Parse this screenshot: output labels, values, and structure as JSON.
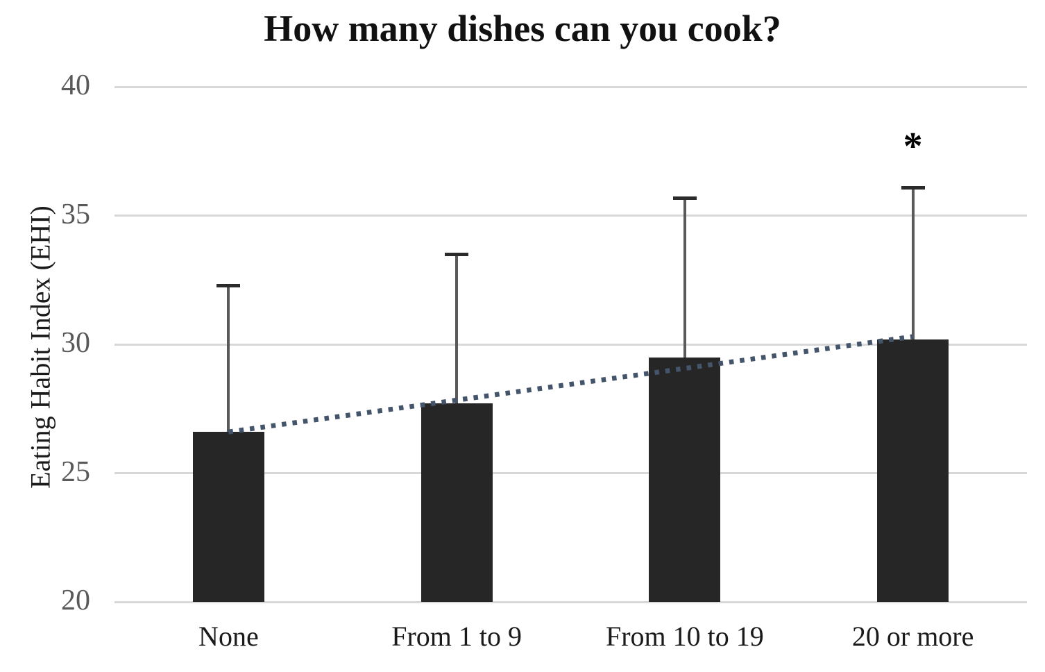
{
  "figure": {
    "title": "How many dishes can you cook?",
    "ylabel": "Eating Habit Index (EHI)"
  },
  "chart_data": {
    "type": "bar",
    "title": "How many dishes can you cook?",
    "xlabel": "",
    "ylabel": "Eating Habit Index (EHI)",
    "categories": [
      "None",
      "From 1 to 9",
      "From 10 to 19",
      "20 or more"
    ],
    "values": [
      26.6,
      27.7,
      29.5,
      30.2
    ],
    "error_bar_tops": [
      32.3,
      33.5,
      35.7,
      36.1
    ],
    "error_upper": [
      5.7,
      5.8,
      6.2,
      5.9
    ],
    "ylim": [
      20,
      40
    ],
    "yticks": [
      20,
      25,
      30,
      35,
      40
    ],
    "grid": "horizontal-only",
    "legend": "none",
    "bar_color": "#262626",
    "gridline_color": "#d8d8d8",
    "tick_label_color": "#595959",
    "error_bar_color": "#595959",
    "trendline": {
      "style": "dotted",
      "color": "#44546A",
      "start_value": 26.6,
      "end_value": 30.3
    },
    "annotations": [
      {
        "text": "*",
        "category_index": 3,
        "y_value": 37.9
      }
    ]
  }
}
